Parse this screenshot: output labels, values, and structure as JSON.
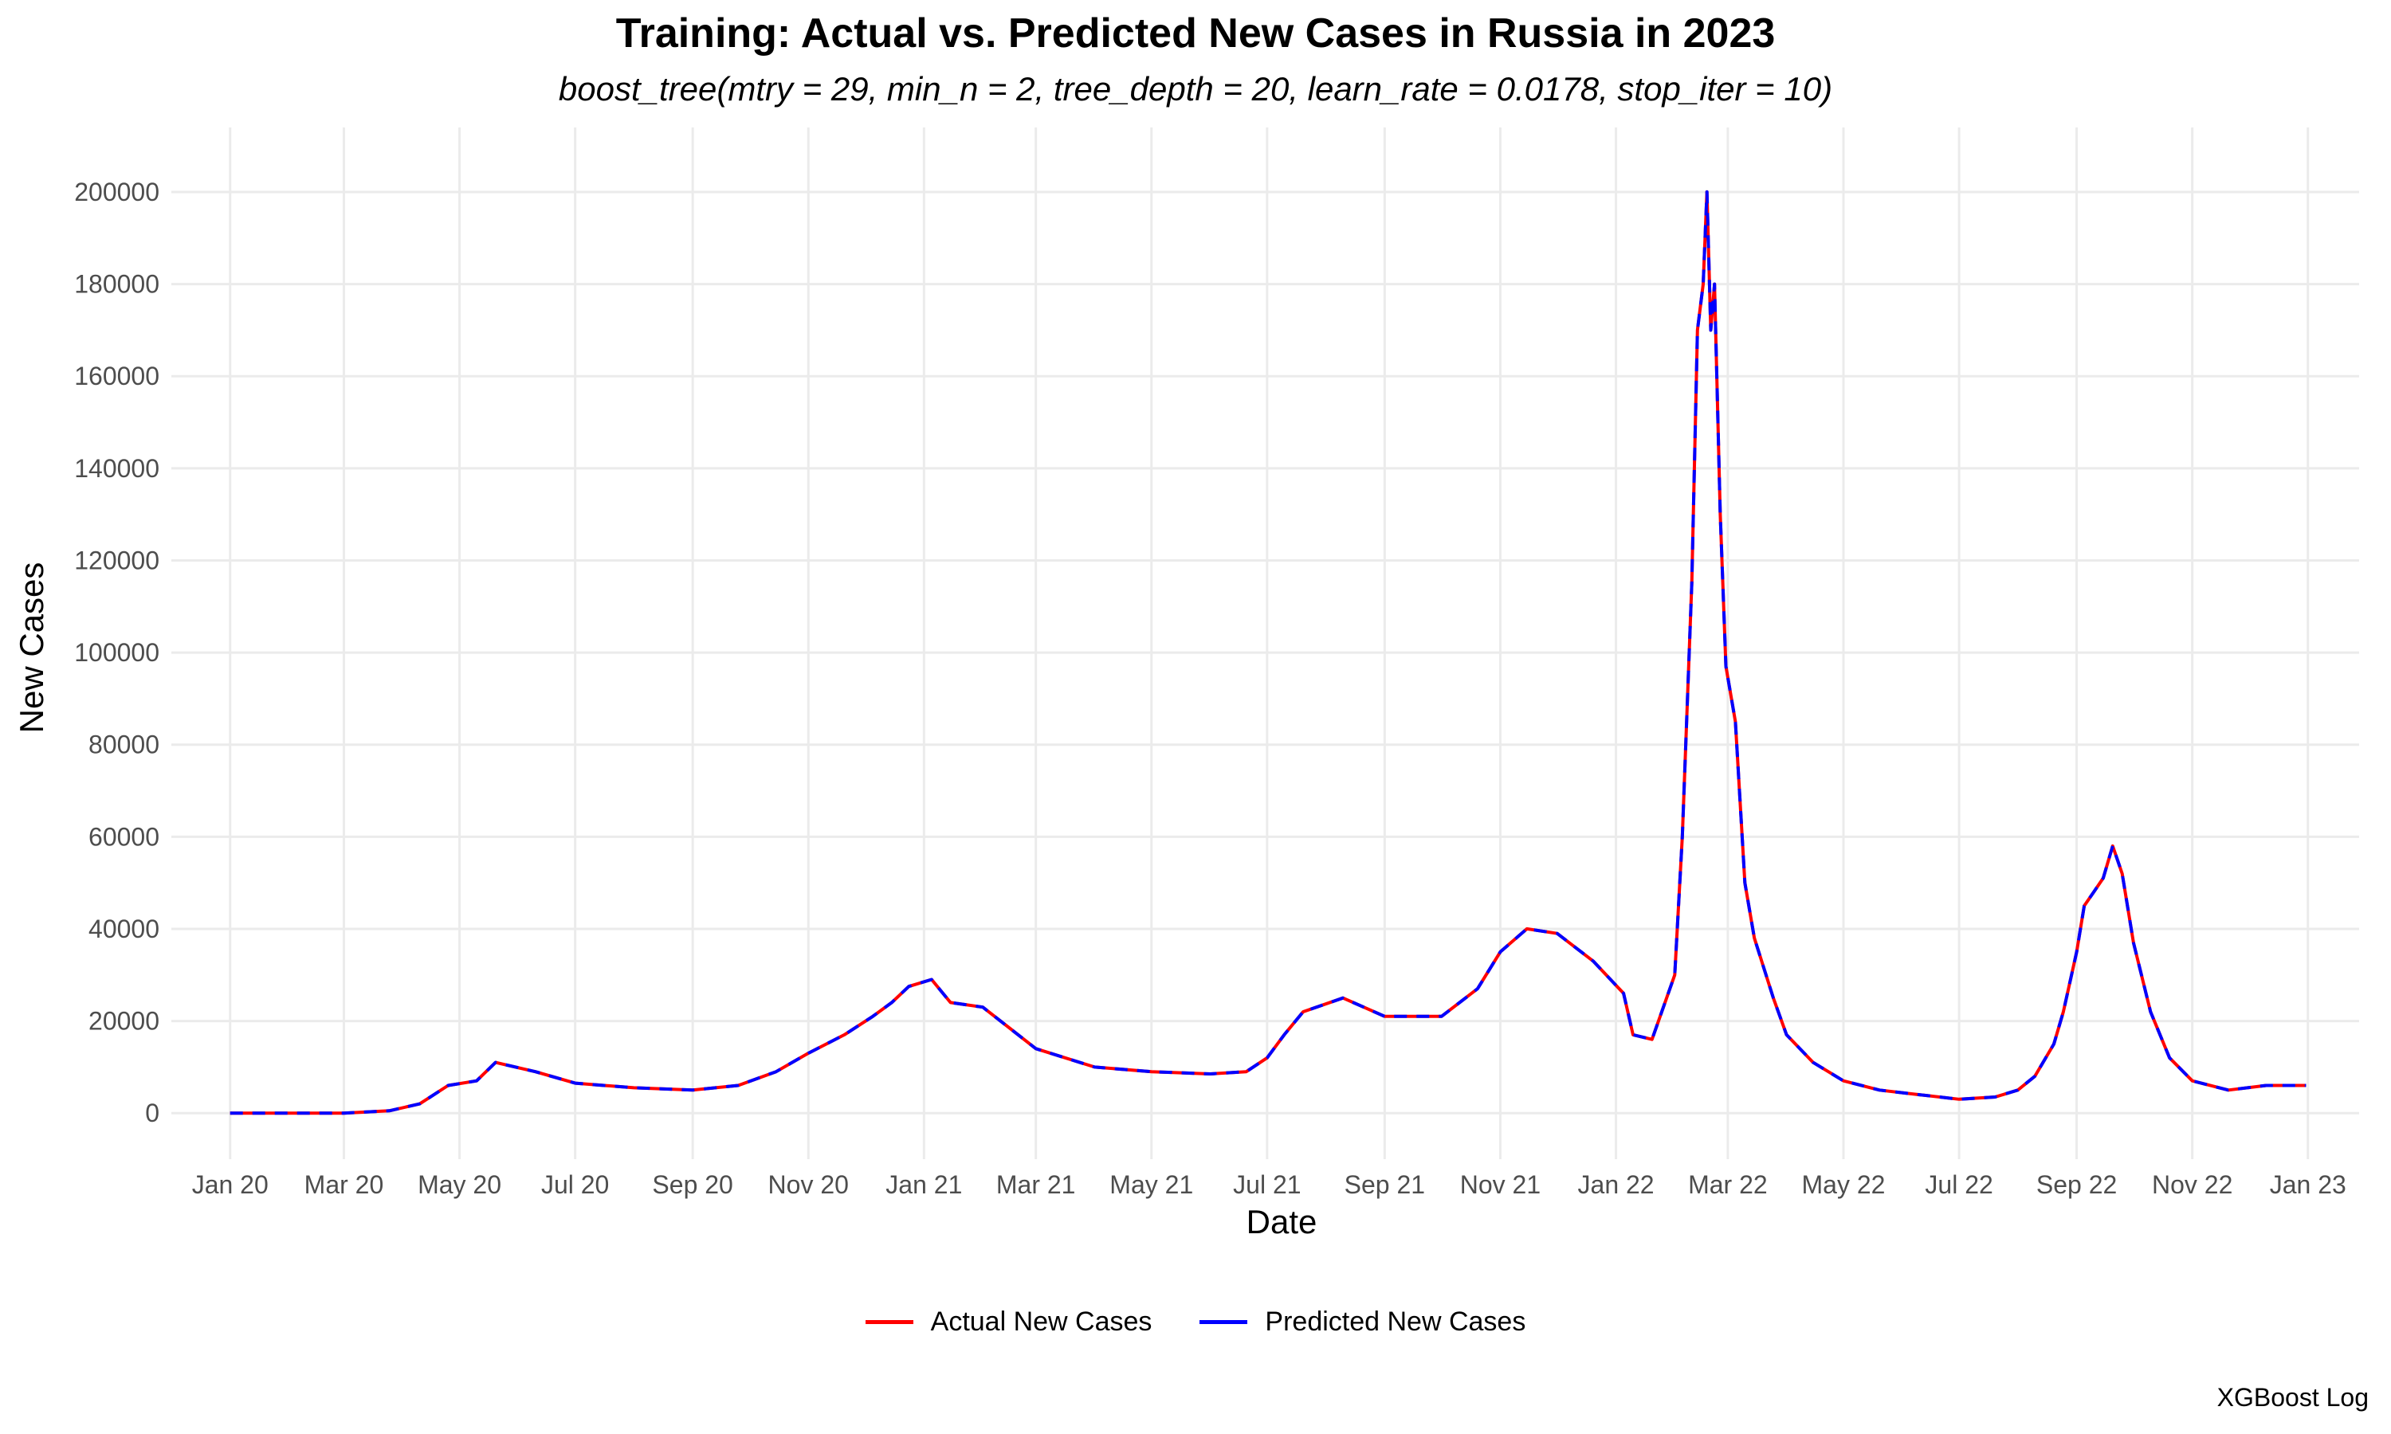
{
  "chart_data": {
    "type": "line",
    "title": "Training: Actual vs. Predicted New Cases in Russia in 2023",
    "subtitle": "boost_tree(mtry = 29, min_n = 2, tree_depth = 20, learn_rate = 0.0178, stop_iter = 10)",
    "xlabel": "Date",
    "ylabel": "New Cases",
    "caption": "XGBoost Log",
    "x_ticks": [
      "Jan 20",
      "Mar 20",
      "May 20",
      "Jul 20",
      "Sep 20",
      "Nov 20",
      "Jan 21",
      "Mar 21",
      "May 21",
      "Jul 21",
      "Sep 21",
      "Nov 21",
      "Jan 22",
      "Mar 22",
      "May 22",
      "Jul 22",
      "Sep 22",
      "Nov 22",
      "Jan 23"
    ],
    "y_ticks": [
      "0",
      "20000",
      "40000",
      "60000",
      "80000",
      "100000",
      "120000",
      "140000",
      "160000",
      "180000",
      "200000"
    ],
    "xlim": [
      "2019-12-01",
      "2023-01-28"
    ],
    "ylim": [
      -10000,
      214000
    ],
    "grid": true,
    "legend_position": "bottom",
    "colors": {
      "actual": "#ff0000",
      "predicted": "#0000ff",
      "grid": "#ebebeb"
    },
    "x": [
      "2020-01-01",
      "2020-03-01",
      "2020-03-25",
      "2020-04-10",
      "2020-04-25",
      "2020-05-10",
      "2020-05-20",
      "2020-06-10",
      "2020-07-01",
      "2020-08-01",
      "2020-09-01",
      "2020-09-25",
      "2020-10-15",
      "2020-11-01",
      "2020-11-20",
      "2020-12-05",
      "2020-12-15",
      "2020-12-24",
      "2021-01-05",
      "2021-01-15",
      "2021-02-01",
      "2021-03-01",
      "2021-04-01",
      "2021-05-01",
      "2021-06-01",
      "2021-06-20",
      "2021-07-01",
      "2021-07-10",
      "2021-07-20",
      "2021-08-10",
      "2021-09-01",
      "2021-10-01",
      "2021-10-20",
      "2021-11-01",
      "2021-11-15",
      "2021-12-01",
      "2021-12-20",
      "2022-01-05",
      "2022-01-10",
      "2022-01-20",
      "2022-02-01",
      "2022-02-05",
      "2022-02-10",
      "2022-02-13",
      "2022-02-16",
      "2022-02-18",
      "2022-02-20",
      "2022-02-22",
      "2022-02-25",
      "2022-02-28",
      "2022-03-05",
      "2022-03-10",
      "2022-03-15",
      "2022-03-25",
      "2022-04-01",
      "2022-04-15",
      "2022-05-01",
      "2022-05-20",
      "2022-06-10",
      "2022-07-01",
      "2022-07-20",
      "2022-08-01",
      "2022-08-10",
      "2022-08-20",
      "2022-08-25",
      "2022-09-01",
      "2022-09-05",
      "2022-09-10",
      "2022-09-15",
      "2022-09-20",
      "2022-09-25",
      "2022-10-01",
      "2022-10-10",
      "2022-10-20",
      "2022-11-01",
      "2022-11-20",
      "2022-12-10",
      "2022-12-31"
    ],
    "series": [
      {
        "name": "Actual New Cases",
        "values": [
          0,
          0,
          500,
          2000,
          6000,
          7000,
          11000,
          9000,
          6500,
          5500,
          5000,
          6000,
          9000,
          13000,
          17000,
          21000,
          24000,
          27500,
          29000,
          24000,
          23000,
          14000,
          10000,
          9000,
          8500,
          9000,
          12000,
          17000,
          22000,
          25000,
          21000,
          21000,
          27000,
          35000,
          40000,
          39000,
          33000,
          26000,
          17000,
          16000,
          30000,
          60000,
          115000,
          170000,
          180000,
          200000,
          170000,
          180000,
          130000,
          97000,
          85000,
          50000,
          38000,
          25000,
          17000,
          11000,
          7000,
          5000,
          4000,
          3000,
          3500,
          5000,
          8000,
          15000,
          22000,
          35000,
          45000,
          48000,
          51000,
          58000,
          52000,
          37000,
          22000,
          12000,
          7000,
          5000,
          6000,
          6000
        ]
      },
      {
        "name": "Predicted New Cases",
        "values": [
          0,
          0,
          500,
          2000,
          6000,
          7000,
          11000,
          9000,
          6500,
          5500,
          5000,
          6000,
          9000,
          13000,
          17000,
          21000,
          24000,
          27500,
          29000,
          24000,
          23000,
          14000,
          10000,
          9000,
          8500,
          9000,
          12000,
          17000,
          22000,
          25000,
          21000,
          21000,
          27000,
          35000,
          40000,
          39000,
          33000,
          26000,
          17000,
          16000,
          30000,
          60000,
          115000,
          170000,
          180000,
          200000,
          170000,
          180000,
          130000,
          97000,
          85000,
          50000,
          38000,
          25000,
          17000,
          11000,
          7000,
          5000,
          4000,
          3000,
          3500,
          5000,
          8000,
          15000,
          22000,
          35000,
          45000,
          48000,
          51000,
          58000,
          52000,
          37000,
          22000,
          12000,
          7000,
          5000,
          6000,
          6000
        ]
      }
    ]
  }
}
